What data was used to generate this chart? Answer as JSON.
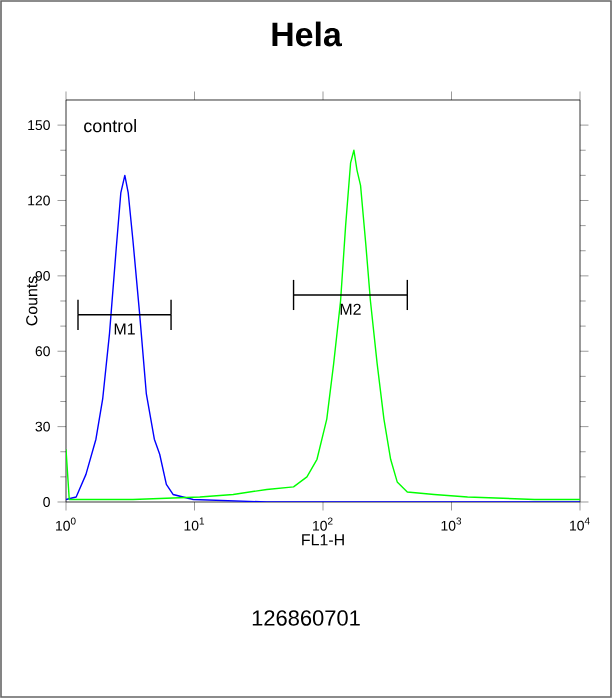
{
  "chart_data": {
    "type": "line",
    "title": "Hela",
    "xlabel": "FL1-H",
    "ylabel": "Counts",
    "log": "x",
    "grid": false,
    "legend": false,
    "marker": "none",
    "line_style": "solid",
    "xlim": [
      1,
      10000
    ],
    "ylim": [
      0,
      160
    ],
    "xticks": [
      {
        "value": 1,
        "label": "10$^{0}$"
      },
      {
        "value": 10,
        "label": "10$^{1}$"
      },
      {
        "value": 100,
        "label": "10$^{2}$"
      },
      {
        "value": 1000,
        "label": "10$^{3}$"
      },
      {
        "value": 10000,
        "label": "10$^{4}$"
      }
    ],
    "yticks": [
      0,
      30,
      60,
      90,
      120,
      150
    ],
    "series": [
      {
        "color": "#0000ff",
        "x": [
          1.0,
          1.2,
          1.43,
          1.71,
          1.93,
          2.18,
          2.46,
          2.67,
          2.87,
          3.05,
          3.32,
          3.74,
          4.22,
          4.87,
          5.36,
          6.04,
          6.81,
          9.77,
          36.5,
          402,
          10000
        ],
        "values": [
          1,
          2,
          11,
          25,
          41,
          67,
          101,
          123,
          130,
          123,
          104,
          75,
          43,
          25,
          19,
          7,
          3,
          1,
          0,
          0,
          0
        ]
      },
      {
        "color": "#00ff00",
        "x": [
          1.0,
          1.06,
          3.32,
          11.0,
          20.0,
          36.5,
          59.0,
          75,
          89.8,
          107,
          121,
          137,
          150,
          164,
          174,
          184,
          196,
          215,
          234,
          264,
          298,
          336,
          378,
          453,
          733,
          1334,
          4426,
          10000
        ],
        "values": [
          21,
          1,
          1,
          2,
          3,
          5,
          6,
          10,
          17,
          33,
          55,
          80,
          110,
          135,
          140,
          132,
          126,
          103,
          80,
          55,
          33,
          17,
          8,
          4,
          3,
          2,
          1,
          1
        ]
      },
      {
        "name": "M1",
        "color": "#000000",
        "x": [
          1.24,
          6.57
        ],
        "values": [
          74.5,
          74.5
        ],
        "errors": [
          6,
          6
        ]
      },
      {
        "name": "M2",
        "color": "#000000",
        "x": [
          59,
          453
        ],
        "values": [
          82.4,
          82.4
        ],
        "errors": [
          6,
          6
        ]
      }
    ],
    "annotations": [
      "control",
      "126860701"
    ]
  }
}
